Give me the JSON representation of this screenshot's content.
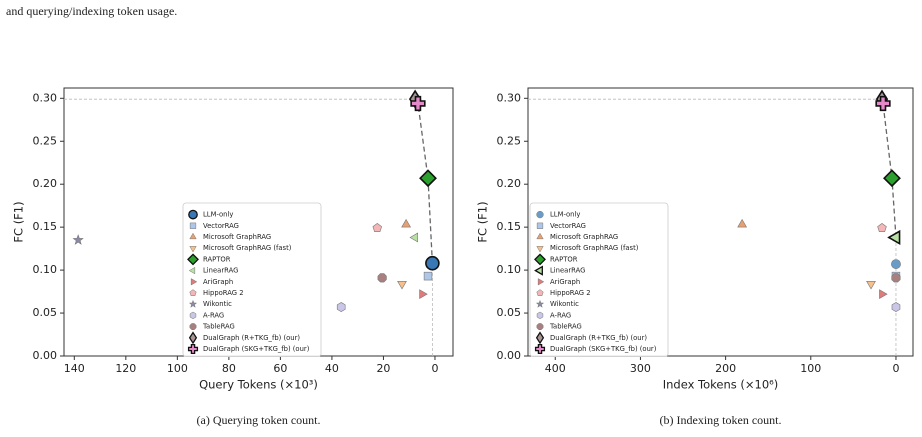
{
  "caption": "and querying/indexing token usage.",
  "chart_data": [
    {
      "type": "scatter",
      "caption": "(a) Querying token count.",
      "xlabel": "Query Tokens (×10³)",
      "ylabel": "FC (F1)",
      "xlim": [
        144,
        -7
      ],
      "ylim": [
        0,
        0.312
      ],
      "xticks": [
        140,
        120,
        100,
        80,
        60,
        40,
        20,
        0
      ],
      "yticks": [
        {
          "value": 0,
          "label": "0.00"
        },
        {
          "value": 0.05,
          "label": "0.05"
        },
        {
          "value": 0.1,
          "label": "0.10"
        },
        {
          "value": 0.15,
          "label": "0.15"
        },
        {
          "value": 0.2,
          "label": "0.20"
        },
        {
          "value": 0.25,
          "label": "0.25"
        },
        {
          "value": 0.3,
          "label": "0.30"
        }
      ],
      "series": [
        {
          "name": "LLM-only",
          "color": "#3a78b5",
          "marker": "circle",
          "x": [
            1
          ],
          "values": [
            0.108
          ]
        },
        {
          "name": "VectorRAG",
          "color": "#aec7e8",
          "marker": "square",
          "x": [
            2.7
          ],
          "values": [
            0.093
          ]
        },
        {
          "name": "Microsoft GraphRAG",
          "color": "#e8a070",
          "marker": "triangle-up",
          "x": [
            11.2
          ],
          "values": [
            0.153
          ]
        },
        {
          "name": "Microsoft GraphRAG (fast)",
          "color": "#f5c08e",
          "marker": "triangle-down",
          "x": [
            12.8
          ],
          "values": [
            0.084
          ]
        },
        {
          "name": "RAPTOR",
          "color": "#2ca02c",
          "marker": "diamond",
          "x": [
            2.7
          ],
          "values": [
            0.207
          ]
        },
        {
          "name": "LinearRAG",
          "color": "#b8e0a4",
          "marker": "triangle-left",
          "x": [
            7.7
          ],
          "values": [
            0.138
          ]
        },
        {
          "name": "AriGraph",
          "color": "#e07b7b",
          "marker": "triangle-right",
          "x": [
            5
          ],
          "values": [
            0.072
          ]
        },
        {
          "name": "HippoRAG 2",
          "color": "#f4b6b6",
          "marker": "pentagon",
          "x": [
            22.4
          ],
          "values": [
            0.149
          ]
        },
        {
          "name": "Wikontic",
          "color": "#8a8aa8",
          "marker": "star",
          "x": [
            138.5
          ],
          "values": [
            0.135
          ]
        },
        {
          "name": "A-RAG",
          "color": "#cac6e8",
          "marker": "hexagon",
          "x": [
            36.4
          ],
          "values": [
            0.057
          ]
        },
        {
          "name": "TableRAG",
          "color": "#a88080",
          "marker": "octagon",
          "x": [
            20.5
          ],
          "values": [
            0.091
          ]
        },
        {
          "name": "DualGraph (R+TKG_fb) (our)",
          "color": "#a89494",
          "marker": "thin-diamond",
          "x": [
            7.7
          ],
          "values": [
            0.299
          ]
        },
        {
          "name": "DualGraph (SKG+TKG_fb) (our)",
          "color": "#e58ac8",
          "marker": "plus",
          "x": [
            6.6
          ],
          "values": [
            0.294
          ]
        }
      ]
    },
    {
      "type": "scatter",
      "caption": "(b) Indexing token count.",
      "xlabel": "Index Tokens (×10⁶)",
      "ylabel": "FC (F1)",
      "xlim": [
        432,
        -20
      ],
      "ylim": [
        0,
        0.312
      ],
      "xticks": [
        400,
        300,
        200,
        100,
        0
      ],
      "yticks": [
        {
          "value": 0,
          "label": "0.00"
        },
        {
          "value": 0.05,
          "label": "0.05"
        },
        {
          "value": 0.1,
          "label": "0.10"
        },
        {
          "value": 0.15,
          "label": "0.15"
        },
        {
          "value": 0.2,
          "label": "0.20"
        },
        {
          "value": 0.25,
          "label": "0.25"
        },
        {
          "value": 0.3,
          "label": "0.30"
        }
      ],
      "series": [
        {
          "name": "LLM-only",
          "color": "#6a9cc8",
          "marker": "circle",
          "x": [
            0
          ],
          "values": [
            0.107
          ]
        },
        {
          "name": "VectorRAG",
          "color": "#aec7e8",
          "marker": "square",
          "x": [
            0
          ],
          "values": [
            0.093
          ]
        },
        {
          "name": "Microsoft GraphRAG",
          "color": "#e8a070",
          "marker": "triangle-up",
          "x": [
            180.6
          ],
          "values": [
            0.153
          ]
        },
        {
          "name": "Microsoft GraphRAG (fast)",
          "color": "#f5c08e",
          "marker": "triangle-down",
          "x": [
            29.3
          ],
          "values": [
            0.084
          ]
        },
        {
          "name": "RAPTOR",
          "color": "#2ca02c",
          "marker": "diamond",
          "x": [
            4.7
          ],
          "values": [
            0.207
          ]
        },
        {
          "name": "LinearRAG",
          "color": "#b8e0a4",
          "marker": "triangle-left",
          "x": [
            0
          ],
          "values": [
            0.138
          ]
        },
        {
          "name": "AriGraph",
          "color": "#e07b7b",
          "marker": "triangle-right",
          "x": [
            16.4
          ],
          "values": [
            0.072
          ]
        },
        {
          "name": "HippoRAG 2",
          "color": "#f4b6b6",
          "marker": "pentagon",
          "x": [
            16.4
          ],
          "values": [
            0.149
          ]
        },
        {
          "name": "Wikontic",
          "color": "#8a8aa8",
          "marker": "star",
          "x": [
            null
          ],
          "values": [
            null
          ]
        },
        {
          "name": "A-RAG",
          "color": "#cac6e8",
          "marker": "hexagon",
          "x": [
            0
          ],
          "values": [
            0.057
          ]
        },
        {
          "name": "TableRAG",
          "color": "#a88080",
          "marker": "octagon",
          "x": [
            0
          ],
          "values": [
            0.091
          ]
        },
        {
          "name": "DualGraph (R+TKG_fb) (our)",
          "color": "#a89494",
          "marker": "thin-diamond",
          "x": [
            16.4
          ],
          "values": [
            0.299
          ]
        },
        {
          "name": "DualGraph (SKG+TKG_fb) (our)",
          "color": "#e58ac8",
          "marker": "plus",
          "x": [
            15.2
          ],
          "values": [
            0.294
          ]
        }
      ]
    }
  ]
}
